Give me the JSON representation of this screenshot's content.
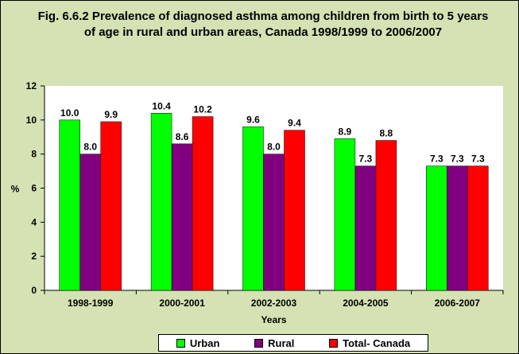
{
  "chart_data": {
    "type": "bar",
    "title": "Fig. 6.6.2 Prevalence of diagnosed asthma among children from birth to 5 years of age in rural and urban areas, Canada 1998/1999 to 2006/2007",
    "xlabel": "Years",
    "ylabel": "%",
    "ylim": [
      0,
      12
    ],
    "yticks": [
      0,
      2,
      4,
      6,
      8,
      10,
      12
    ],
    "categories": [
      "1998-1999",
      "2000-2001",
      "2002-2003",
      "2004-2005",
      "2006-2007"
    ],
    "series": [
      {
        "name": "Urban",
        "color": "#00ff00",
        "values": [
          10.0,
          10.4,
          9.6,
          8.9,
          7.3
        ]
      },
      {
        "name": "Rural",
        "color": "#800080",
        "values": [
          8.0,
          8.6,
          8.0,
          7.3,
          7.3
        ]
      },
      {
        "name": "Total- Canada",
        "color": "#ff0000",
        "values": [
          9.9,
          10.2,
          9.4,
          8.8,
          7.3
        ]
      }
    ],
    "grid": false,
    "legend_position": "bottom"
  }
}
